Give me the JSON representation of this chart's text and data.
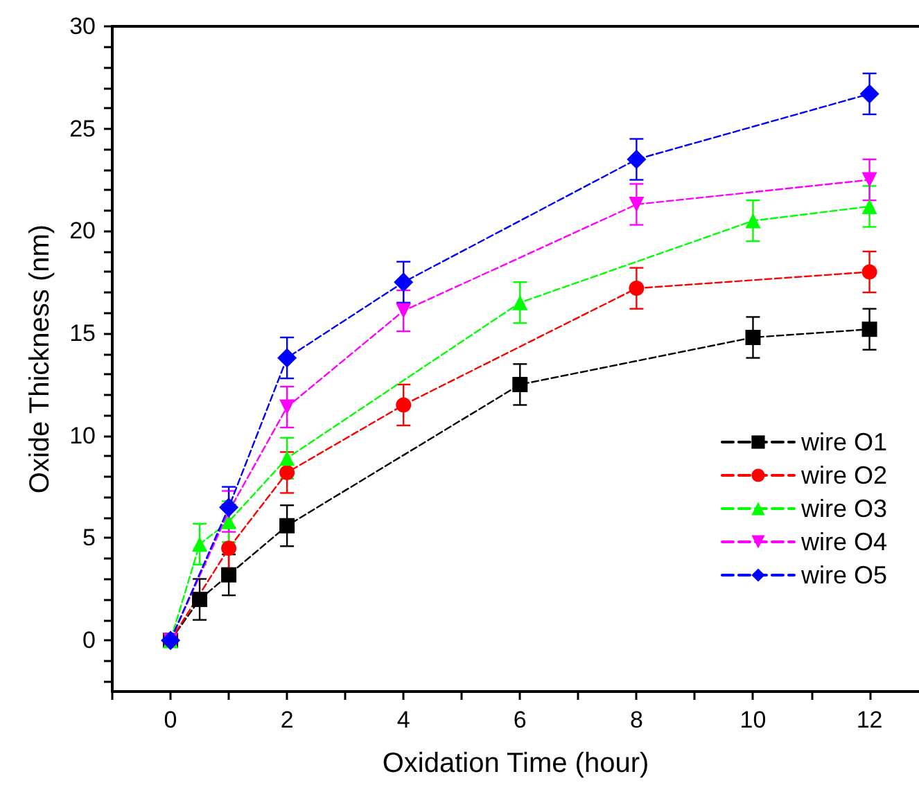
{
  "chart_data": {
    "type": "line",
    "xlabel": "Oxidation Time (hour)",
    "ylabel": "Oxide Thickness (nm)",
    "xlim": [
      -1,
      12.85
    ],
    "ylim": [
      -2.5,
      30
    ],
    "xticks": [
      {
        "value": -1,
        "label": null
      },
      0,
      {
        "value": 1,
        "label": null
      },
      2,
      {
        "value": 3,
        "label": null
      },
      4,
      {
        "value": 5,
        "label": null
      },
      6,
      {
        "value": 7,
        "label": null
      },
      8,
      {
        "value": 9,
        "label": null
      },
      10,
      {
        "value": 11,
        "label": null
      },
      12
    ],
    "yticks": [
      {
        "value": -2,
        "label": null
      },
      {
        "value": -1,
        "label": null
      },
      0,
      {
        "value": 1,
        "label": null
      },
      {
        "value": 2,
        "label": null
      },
      {
        "value": 3,
        "label": null
      },
      {
        "value": 4,
        "label": null
      },
      5,
      {
        "value": 6,
        "label": null
      },
      {
        "value": 7,
        "label": null
      },
      {
        "value": 8,
        "label": null
      },
      {
        "value": 9,
        "label": null
      },
      10,
      {
        "value": 11,
        "label": null
      },
      {
        "value": 12,
        "label": null
      },
      {
        "value": 13,
        "label": null
      },
      {
        "value": 14,
        "label": null
      },
      15,
      {
        "value": 16,
        "label": null
      },
      {
        "value": 17,
        "label": null
      },
      {
        "value": 18,
        "label": null
      },
      {
        "value": 19,
        "label": null
      },
      20,
      {
        "value": 21,
        "label": null
      },
      {
        "value": 22,
        "label": null
      },
      {
        "value": 23,
        "label": null
      },
      {
        "value": 24,
        "label": null
      },
      25,
      {
        "value": 26,
        "label": null
      },
      {
        "value": 27,
        "label": null
      },
      {
        "value": 28,
        "label": null
      },
      {
        "value": 29,
        "label": null
      },
      30
    ],
    "grid": false,
    "legend": "right",
    "line_style": "dashed",
    "series": [
      {
        "name": "wire O1",
        "color": "#000000",
        "marker": "square",
        "x": [
          0,
          0.5,
          1,
          2,
          6,
          10,
          12
        ],
        "values": [
          0,
          2.0,
          3.2,
          5.6,
          12.5,
          14.8,
          15.2
        ],
        "errors": [
          null,
          1,
          1,
          1,
          1,
          1,
          1
        ]
      },
      {
        "name": "wire O2",
        "color": "#ff0000",
        "marker": "circle",
        "x": [
          0,
          1,
          2,
          4,
          8,
          12
        ],
        "values": [
          0,
          4.5,
          8.2,
          11.5,
          17.2,
          18.0
        ],
        "errors": [
          null,
          1,
          1,
          1,
          1,
          1
        ]
      },
      {
        "name": "wire O3",
        "color": "#00ff00",
        "marker": "triangle",
        "x": [
          0,
          0.5,
          1,
          2,
          6,
          10,
          12
        ],
        "values": [
          0,
          4.7,
          5.8,
          8.9,
          16.5,
          20.5,
          21.2
        ],
        "errors": [
          null,
          1,
          1,
          1,
          1,
          1,
          1
        ]
      },
      {
        "name": "wire O4",
        "color": "#ff00ff",
        "marker": "triangle-down",
        "x": [
          0,
          1,
          2,
          4,
          8,
          12
        ],
        "values": [
          0,
          6.3,
          11.4,
          16.1,
          21.3,
          22.5
        ],
        "errors": [
          null,
          1,
          1,
          1,
          1,
          1
        ]
      },
      {
        "name": "wire O5",
        "color": "#0000ff",
        "marker": "diamond",
        "x": [
          0,
          1,
          2,
          4,
          8,
          12
        ],
        "values": [
          0,
          6.5,
          13.8,
          17.5,
          23.5,
          26.7
        ],
        "errors": [
          null,
          1,
          1,
          1,
          1,
          1
        ]
      }
    ]
  }
}
